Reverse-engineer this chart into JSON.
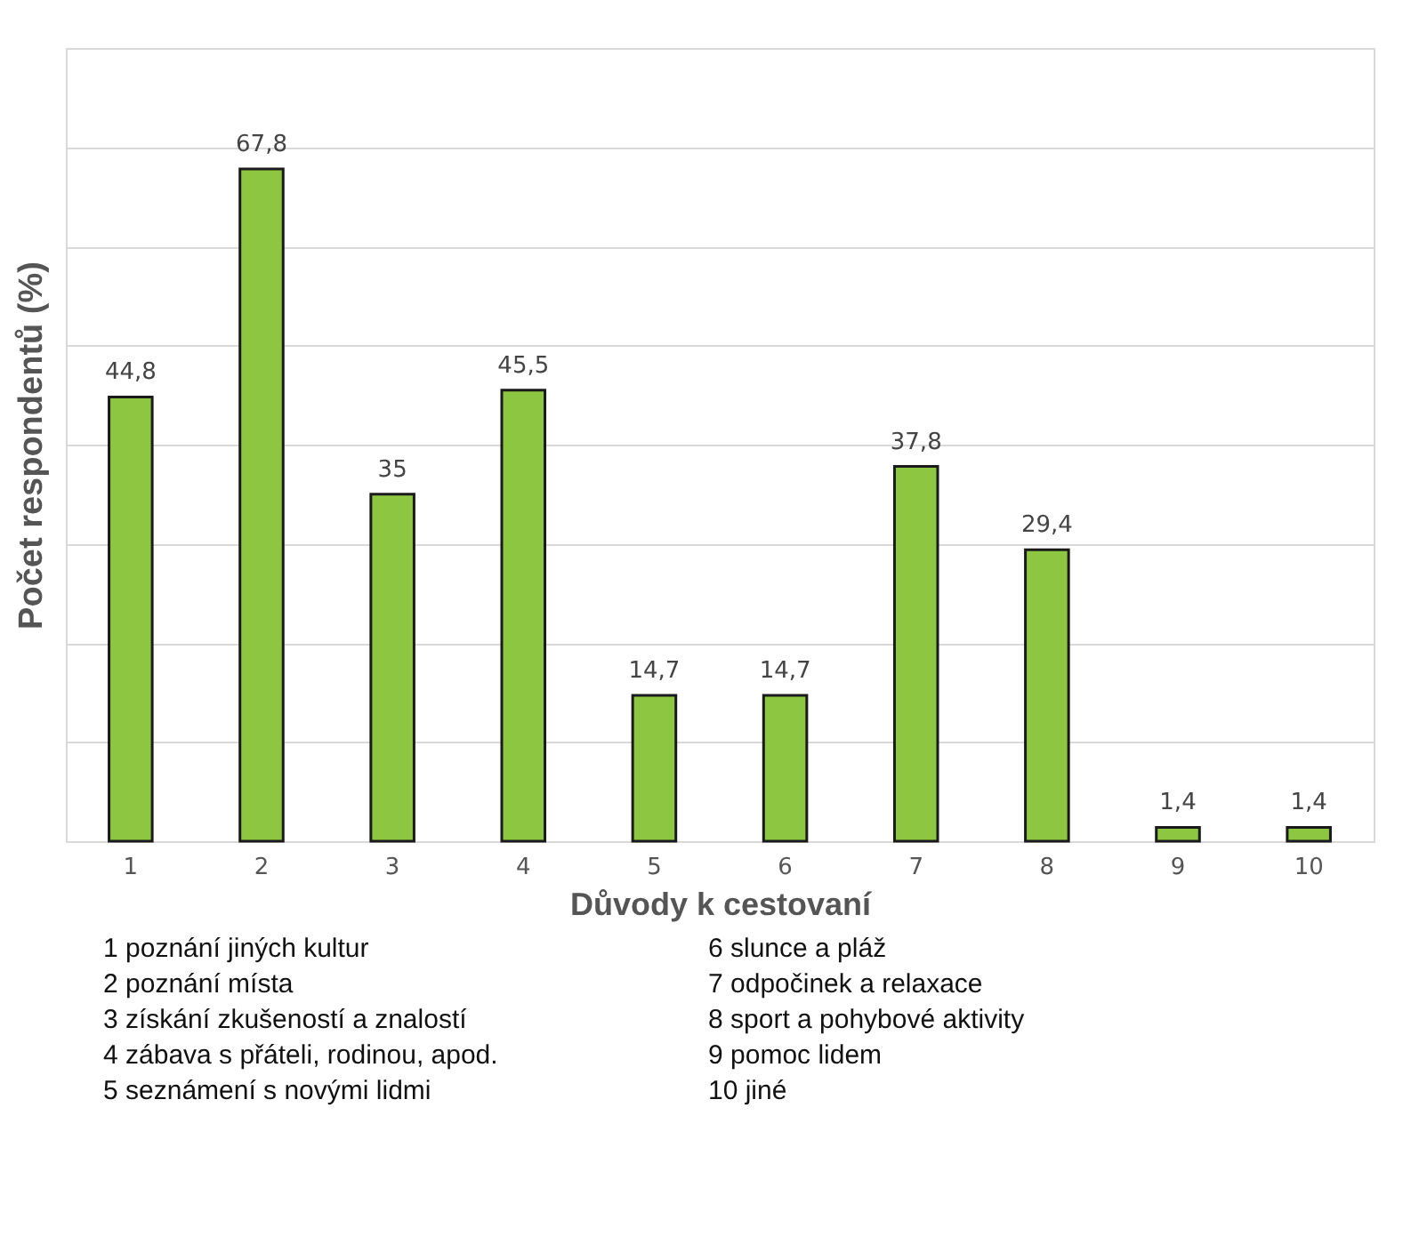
{
  "chart_data": {
    "type": "bar",
    "xlabel": "Důvody k cestovaní",
    "ylabel": "Počet respondentů (%)",
    "categories": [
      "1",
      "2",
      "3",
      "4",
      "5",
      "6",
      "7",
      "8",
      "9",
      "10"
    ],
    "values": [
      44.8,
      67.8,
      35,
      45.5,
      14.7,
      14.7,
      37.8,
      29.4,
      1.4,
      1.4
    ],
    "value_labels": [
      "44,8",
      "67,8",
      "35",
      "45,5",
      "14,7",
      "14,7",
      "37,8",
      "29,4",
      "1,4",
      "1,4"
    ],
    "color": "#8dc641",
    "ylim": [
      0,
      80
    ],
    "yticks": [
      {
        "value": 0,
        "label": null
      },
      {
        "value": 10,
        "label": null
      },
      {
        "value": 20,
        "label": null
      },
      {
        "value": 30,
        "label": null
      },
      {
        "value": 40,
        "label": null
      },
      {
        "value": 50,
        "label": null
      },
      {
        "value": 60,
        "label": null
      },
      {
        "value": 70,
        "label": null
      },
      {
        "value": 80,
        "label": null
      }
    ],
    "grid": "y",
    "tick_labels": "x",
    "annotations": [
      "1 poznání jiných kultur",
      "2 poznání místa",
      "3 získání zkušeností a znalostí",
      "4 zábava s přáteli, rodinou, apod.",
      "5 seznámení s novými lidmi",
      "6 slunce a pláž",
      "7 odpočinek a relaxace",
      "8 sport a pohybové aktivity",
      "9 pomoc lidem",
      "10 jiné"
    ]
  }
}
